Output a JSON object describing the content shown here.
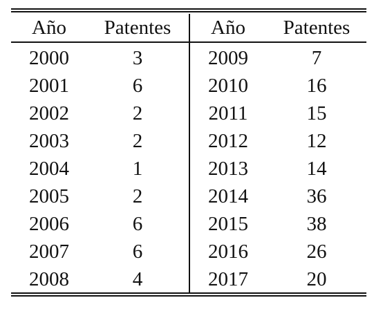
{
  "table": {
    "headers": [
      "Año",
      "Patentes",
      "Año",
      "Patentes"
    ],
    "rows": [
      [
        "2000",
        "3",
        "2009",
        "7"
      ],
      [
        "2001",
        "6",
        "2010",
        "16"
      ],
      [
        "2002",
        "2",
        "2011",
        "15"
      ],
      [
        "2003",
        "2",
        "2012",
        "12"
      ],
      [
        "2004",
        "1",
        "2013",
        "14"
      ],
      [
        "2005",
        "2",
        "2014",
        "36"
      ],
      [
        "2006",
        "6",
        "2015",
        "38"
      ],
      [
        "2007",
        "6",
        "2016",
        "26"
      ],
      [
        "2008",
        "4",
        "2017",
        "20"
      ]
    ]
  }
}
